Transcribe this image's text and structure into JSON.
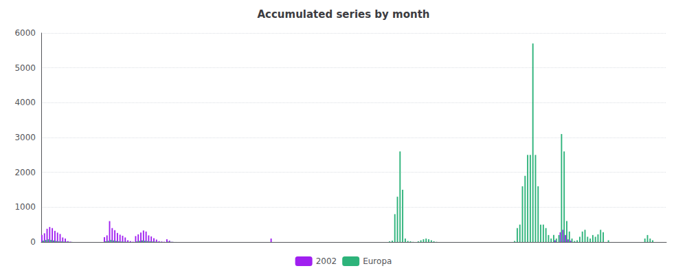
{
  "chart_data": {
    "type": "bar",
    "title": "Accumulated series by month",
    "categories": [
      null,
      null,
      null,
      null,
      null,
      null,
      null,
      null,
      null,
      null,
      null,
      null,
      null,
      null,
      null,
      null,
      null,
      null,
      null,
      null,
      null,
      null,
      null,
      null,
      null,
      null,
      null,
      null,
      null,
      null,
      null,
      null,
      null,
      null,
      null,
      null,
      null,
      null,
      null,
      null,
      null,
      null,
      null,
      null,
      null,
      null,
      null,
      null,
      null,
      null,
      null,
      null,
      null,
      null,
      null,
      null,
      null,
      null,
      null,
      null,
      null,
      null,
      null,
      null,
      null,
      null,
      null,
      null,
      null,
      null,
      null,
      null,
      null,
      null,
      null,
      null,
      null,
      null,
      null,
      null,
      null,
      null,
      null,
      null,
      null,
      null,
      null,
      null,
      null,
      null,
      null,
      null,
      null,
      null,
      null,
      null,
      null,
      null,
      null,
      null,
      null,
      null,
      null,
      null,
      null,
      null,
      null,
      null,
      null,
      null,
      null,
      null,
      null,
      null,
      null,
      null,
      null,
      null,
      null,
      null,
      null,
      null,
      null,
      null,
      null,
      null,
      null,
      null,
      null,
      null,
      null,
      null,
      null,
      null,
      null,
      null,
      null,
      null,
      null,
      null,
      null,
      null,
      null,
      null,
      null,
      null,
      null,
      null,
      null,
      null,
      null,
      null,
      null,
      null,
      null,
      null,
      null,
      null,
      null,
      null,
      null,
      null,
      null,
      null,
      null,
      null,
      null,
      null,
      null,
      null,
      null,
      null,
      null,
      null,
      null,
      null,
      null,
      null,
      null,
      null,
      null,
      null,
      null,
      null,
      null,
      null,
      null,
      null,
      null,
      null,
      null,
      null,
      null,
      null,
      null,
      null,
      null,
      null,
      null,
      null,
      null,
      null,
      null,
      null,
      null,
      null,
      null,
      null,
      null,
      null,
      null,
      null,
      null,
      null,
      null,
      null,
      null,
      null,
      null,
      null,
      null,
      null,
      null,
      null,
      null,
      null,
      null,
      null,
      null,
      null,
      null,
      null,
      null,
      null,
      null,
      null,
      null,
      null,
      null,
      null
    ],
    "series": [
      {
        "name": "2002",
        "color": "#a020f0",
        "values": [
          200,
          250,
          380,
          430,
          400,
          320,
          270,
          230,
          130,
          100,
          25,
          10,
          0,
          0,
          0,
          0,
          0,
          0,
          0,
          0,
          0,
          0,
          0,
          0,
          140,
          190,
          600,
          400,
          340,
          260,
          210,
          180,
          130,
          50,
          25,
          10,
          170,
          220,
          270,
          330,
          300,
          190,
          160,
          110,
          70,
          25,
          15,
          8,
          80,
          40,
          8,
          0,
          0,
          0,
          0,
          0,
          0,
          0,
          0,
          0,
          0,
          0,
          0,
          0,
          0,
          0,
          0,
          0,
          0,
          0,
          0,
          0,
          0,
          0,
          0,
          0,
          0,
          0,
          0,
          0,
          0,
          0,
          0,
          0,
          0,
          0,
          0,
          0,
          100,
          0,
          0,
          0,
          0,
          0,
          0,
          0,
          0,
          0,
          0,
          0,
          0,
          0,
          0,
          0,
          0,
          0,
          0,
          0,
          0,
          0,
          0,
          0,
          0,
          0,
          0,
          0,
          0,
          0,
          0,
          0,
          0,
          0,
          0,
          0,
          0,
          0,
          0,
          0,
          0,
          0,
          0,
          0,
          0,
          0,
          0,
          0,
          0,
          0,
          0,
          0,
          0,
          0,
          0,
          0,
          0,
          0,
          0,
          0,
          0,
          0,
          0,
          0,
          0,
          0,
          0,
          0,
          0,
          0,
          0,
          0,
          0,
          0,
          0,
          0,
          0,
          0,
          0,
          0,
          0,
          0,
          0,
          0,
          0,
          0,
          0,
          0,
          0,
          0,
          0,
          0,
          0,
          0,
          0,
          0,
          0,
          0,
          0,
          0,
          0,
          0,
          0,
          0,
          0,
          0,
          0,
          0,
          0,
          50,
          0,
          280,
          350,
          200,
          75,
          40,
          0,
          0,
          0,
          0,
          0,
          0,
          0,
          0,
          0,
          0,
          0,
          0,
          0,
          0,
          0,
          0,
          0,
          0,
          0,
          0,
          0,
          0,
          0,
          0,
          0,
          0,
          0,
          0,
          0,
          0,
          0,
          0,
          0,
          0,
          0,
          0
        ]
      },
      {
        "name": "Europa",
        "color": "#2db37a",
        "values": [
          40,
          60,
          80,
          60,
          45,
          30,
          20,
          18,
          12,
          10,
          6,
          3,
          0,
          0,
          0,
          0,
          0,
          0,
          0,
          0,
          0,
          0,
          0,
          0,
          20,
          35,
          60,
          45,
          30,
          20,
          15,
          10,
          7,
          3,
          2,
          1,
          20,
          30,
          45,
          38,
          28,
          20,
          15,
          10,
          7,
          3,
          2,
          1,
          12,
          6,
          3,
          1,
          0,
          0,
          0,
          0,
          0,
          0,
          0,
          0,
          0,
          0,
          0,
          0,
          0,
          0,
          0,
          0,
          0,
          0,
          0,
          0,
          0,
          0,
          0,
          0,
          0,
          0,
          0,
          0,
          0,
          0,
          0,
          0,
          0,
          0,
          0,
          0,
          0,
          0,
          0,
          0,
          0,
          0,
          0,
          0,
          0,
          0,
          0,
          0,
          0,
          0,
          0,
          0,
          0,
          0,
          0,
          0,
          0,
          0,
          0,
          0,
          0,
          0,
          0,
          0,
          0,
          0,
          0,
          0,
          0,
          0,
          0,
          0,
          0,
          0,
          0,
          0,
          0,
          0,
          0,
          0,
          0,
          20,
          40,
          800,
          1300,
          2600,
          1500,
          100,
          30,
          20,
          5,
          0,
          20,
          50,
          80,
          100,
          80,
          50,
          20,
          5,
          0,
          0,
          0,
          0,
          0,
          0,
          0,
          0,
          0,
          0,
          0,
          0,
          0,
          0,
          0,
          0,
          0,
          0,
          0,
          0,
          0,
          0,
          0,
          0,
          0,
          0,
          0,
          0,
          0,
          30,
          400,
          500,
          1600,
          1900,
          2500,
          2500,
          5700,
          2500,
          1600,
          500,
          500,
          400,
          200,
          100,
          200,
          100,
          200,
          3100,
          2600,
          600,
          300,
          100,
          30,
          50,
          150,
          300,
          350,
          150,
          100,
          200,
          150,
          220,
          350,
          280,
          0,
          50,
          0,
          0,
          0,
          0,
          0,
          0,
          0,
          0,
          0,
          0,
          0,
          0,
          0,
          100,
          200,
          100,
          50,
          0,
          0,
          0,
          0,
          0
        ]
      }
    ],
    "ylim": [
      0,
      6000
    ],
    "yticks": [
      0,
      1000,
      2000,
      3000,
      4000,
      5000,
      6000
    ],
    "grid": true,
    "legend": "bottom",
    "tick_labels": "y"
  }
}
